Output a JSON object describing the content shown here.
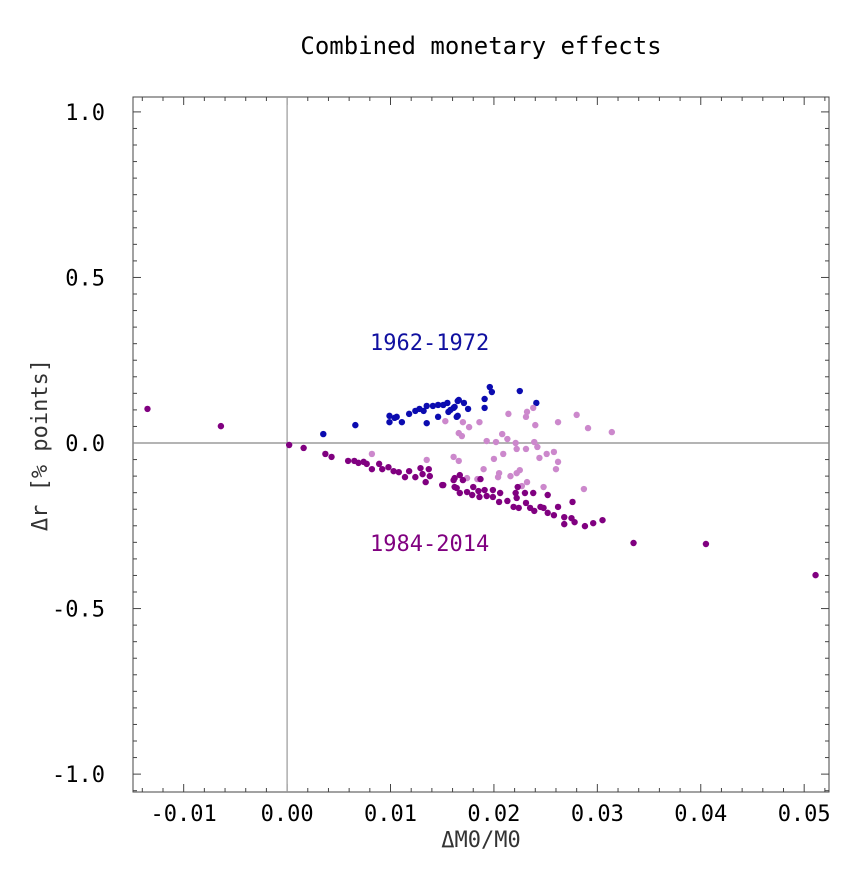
{
  "chart_data": {
    "type": "scatter",
    "title": "Combined monetary effects",
    "xlabel": "ΔM0/M0",
    "ylabel": "Δr [% points]",
    "xlim": [
      -0.0149,
      0.0524
    ],
    "ylim": [
      -1.054,
      1.045
    ],
    "xticks": [
      -0.01,
      0.0,
      0.01,
      0.02,
      0.03,
      0.04,
      0.05
    ],
    "xtick_labels": [
      "-0.01",
      "0.00",
      "0.01",
      "0.02",
      "0.03",
      "0.04",
      "0.05"
    ],
    "yticks": [
      -1.0,
      -0.5,
      0.0,
      0.5,
      1.0
    ],
    "ytick_labels": [
      "-1.0",
      "-0.5",
      "0.0",
      "0.5",
      "1.0"
    ],
    "grid": false,
    "reference_lines": {
      "x": 0,
      "y": 0
    },
    "annotations": [
      {
        "text": "1962-1972",
        "x": 0.0082,
        "y": 0.3,
        "color": "#1010a0"
      },
      {
        "text": "1984-2014",
        "x": 0.0082,
        "y": -0.3,
        "color": "#800080"
      }
    ],
    "series": [
      {
        "color": "#0b0bb0",
        "points": [
          [
            0.0035,
            0.027
          ],
          [
            0.0066,
            0.054
          ],
          [
            0.0099,
            0.082
          ],
          [
            0.0099,
            0.063
          ],
          [
            0.0104,
            0.076
          ],
          [
            0.0106,
            0.079
          ],
          [
            0.0111,
            0.063
          ],
          [
            0.0118,
            0.088
          ],
          [
            0.0124,
            0.097
          ],
          [
            0.0128,
            0.103
          ],
          [
            0.0132,
            0.097
          ],
          [
            0.0135,
            0.112
          ],
          [
            0.0135,
            0.06
          ],
          [
            0.0141,
            0.112
          ],
          [
            0.0146,
            0.079
          ],
          [
            0.0146,
            0.115
          ],
          [
            0.0151,
            0.115
          ],
          [
            0.0155,
            0.121
          ],
          [
            0.0156,
            0.094
          ],
          [
            0.0161,
            0.106
          ],
          [
            0.0164,
            0.079
          ],
          [
            0.0165,
            0.127
          ],
          [
            0.0196,
            0.169
          ],
          [
            0.0198,
            0.154
          ],
          [
            0.0225,
            0.157
          ],
          [
            0.0241,
            0.121
          ],
          [
            0.0191,
            0.133
          ],
          [
            0.0191,
            0.106
          ],
          [
            0.0175,
            0.103
          ],
          [
            0.0166,
            0.13
          ],
          [
            0.0171,
            0.121
          ],
          [
            0.0162,
            0.109
          ],
          [
            0.0158,
            0.1
          ],
          [
            0.0165,
            0.082
          ]
        ]
      },
      {
        "color": "#cc88cc",
        "points": [
          [
            0.0153,
            0.066
          ],
          [
            0.017,
            0.063
          ],
          [
            0.0176,
            0.048
          ],
          [
            0.0186,
            0.063
          ],
          [
            0.0166,
            0.03
          ],
          [
            0.0169,
            0.021
          ],
          [
            0.0214,
            0.088
          ],
          [
            0.0232,
            0.094
          ],
          [
            0.0238,
            0.106
          ],
          [
            0.0231,
            0.079
          ],
          [
            0.024,
            0.054
          ],
          [
            0.0262,
            0.063
          ],
          [
            0.028,
            0.085
          ],
          [
            0.0291,
            0.045
          ],
          [
            0.0314,
            0.033
          ],
          [
            0.0208,
            0.027
          ],
          [
            0.0193,
            0.006
          ],
          [
            0.0202,
            0.003
          ],
          [
            0.0213,
            0.012
          ],
          [
            0.0221,
            0.0
          ],
          [
            0.0239,
            0.003
          ],
          [
            0.0222,
            -0.018
          ],
          [
            0.0231,
            -0.018
          ],
          [
            0.0242,
            -0.012
          ],
          [
            0.0161,
            -0.042
          ],
          [
            0.0166,
            -0.054
          ],
          [
            0.02,
            -0.048
          ],
          [
            0.0209,
            -0.033
          ],
          [
            0.0244,
            -0.045
          ],
          [
            0.0251,
            -0.033
          ],
          [
            0.0258,
            -0.027
          ],
          [
            0.0262,
            -0.057
          ],
          [
            0.026,
            -0.079
          ],
          [
            0.019,
            -0.079
          ],
          [
            0.0225,
            -0.082
          ],
          [
            0.0222,
            -0.091
          ],
          [
            0.0205,
            -0.091
          ],
          [
            0.0204,
            -0.103
          ],
          [
            0.0216,
            -0.1
          ],
          [
            0.0184,
            -0.109
          ],
          [
            0.0174,
            -0.106
          ],
          [
            0.0232,
            -0.118
          ],
          [
            0.0227,
            -0.13
          ],
          [
            0.0248,
            -0.133
          ],
          [
            0.0287,
            -0.139
          ],
          [
            0.0082,
            -0.033
          ],
          [
            0.0135,
            -0.051
          ]
        ]
      },
      {
        "color": "#800080",
        "points": [
          [
            -0.0135,
            0.103
          ],
          [
            -0.0064,
            0.051
          ],
          [
            0.0002,
            -0.006
          ],
          [
            0.0016,
            -0.015
          ],
          [
            0.0037,
            -0.033
          ],
          [
            0.0043,
            -0.042
          ],
          [
            0.0059,
            -0.054
          ],
          [
            0.0065,
            -0.054
          ],
          [
            0.0069,
            -0.06
          ],
          [
            0.0074,
            -0.057
          ],
          [
            0.0077,
            -0.063
          ],
          [
            0.0082,
            -0.079
          ],
          [
            0.0089,
            -0.063
          ],
          [
            0.0092,
            -0.079
          ],
          [
            0.0098,
            -0.073
          ],
          [
            0.0103,
            -0.085
          ],
          [
            0.0108,
            -0.088
          ],
          [
            0.0114,
            -0.103
          ],
          [
            0.0118,
            -0.085
          ],
          [
            0.0124,
            -0.103
          ],
          [
            0.0129,
            -0.076
          ],
          [
            0.0131,
            -0.094
          ],
          [
            0.0134,
            -0.118
          ],
          [
            0.0137,
            -0.079
          ],
          [
            0.0138,
            -0.1
          ],
          [
            0.015,
            -0.127
          ],
          [
            0.0161,
            -0.112
          ],
          [
            0.0162,
            -0.133
          ],
          [
            0.0151,
            -0.127
          ],
          [
            0.0162,
            -0.106
          ],
          [
            0.0167,
            -0.097
          ],
          [
            0.017,
            -0.112
          ],
          [
            0.0187,
            -0.109
          ],
          [
            0.0164,
            -0.136
          ],
          [
            0.0167,
            -0.151
          ],
          [
            0.0174,
            -0.148
          ],
          [
            0.0179,
            -0.157
          ],
          [
            0.018,
            -0.133
          ],
          [
            0.0185,
            -0.145
          ],
          [
            0.0186,
            -0.163
          ],
          [
            0.0191,
            -0.142
          ],
          [
            0.0193,
            -0.16
          ],
          [
            0.0199,
            -0.142
          ],
          [
            0.0199,
            -0.163
          ],
          [
            0.0206,
            -0.151
          ],
          [
            0.0205,
            -0.178
          ],
          [
            0.0213,
            -0.175
          ],
          [
            0.0219,
            -0.193
          ],
          [
            0.0221,
            -0.151
          ],
          [
            0.0223,
            -0.133
          ],
          [
            0.0222,
            -0.166
          ],
          [
            0.0224,
            -0.196
          ],
          [
            0.023,
            -0.151
          ],
          [
            0.0231,
            -0.181
          ],
          [
            0.0235,
            -0.196
          ],
          [
            0.0238,
            -0.151
          ],
          [
            0.0239,
            -0.205
          ],
          [
            0.0245,
            -0.193
          ],
          [
            0.0252,
            -0.157
          ],
          [
            0.0252,
            -0.211
          ],
          [
            0.0258,
            -0.218
          ],
          [
            0.0262,
            -0.193
          ],
          [
            0.0268,
            -0.224
          ],
          [
            0.0268,
            -0.245
          ],
          [
            0.0275,
            -0.227
          ],
          [
            0.0276,
            -0.178
          ],
          [
            0.0278,
            -0.239
          ],
          [
            0.0288,
            -0.251
          ],
          [
            0.0296,
            -0.242
          ],
          [
            0.0305,
            -0.233
          ],
          [
            0.0248,
            -0.196
          ],
          [
            0.0335,
            -0.302
          ],
          [
            0.0405,
            -0.305
          ],
          [
            0.0511,
            -0.399
          ]
        ]
      }
    ]
  }
}
